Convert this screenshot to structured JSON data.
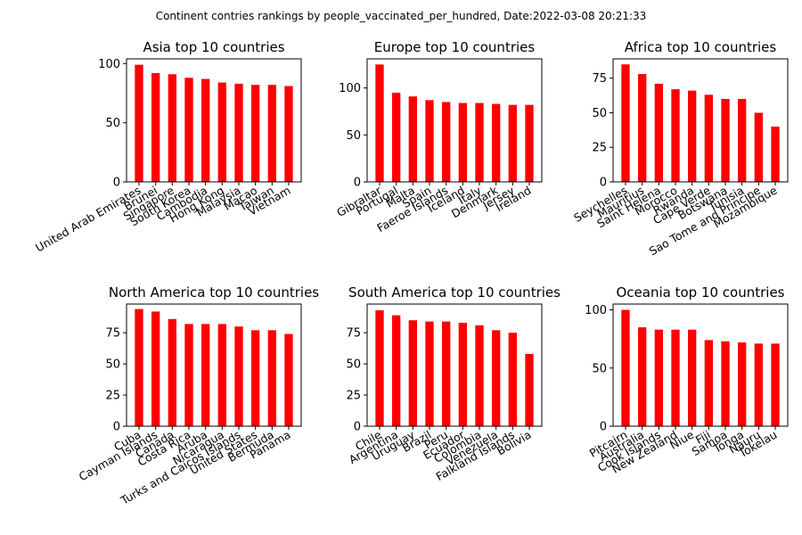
{
  "suptitle": "Continent contries rankings by people_vaccinated_per_hundred, Date:2022-03-08 20:21:33",
  "colors": {
    "bar": "#ff0000",
    "axis": "#000000",
    "background": "#ffffff"
  },
  "chart_data": [
    {
      "type": "bar",
      "title": "Asia top 10 countries",
      "categories": [
        "United Arab Emirates",
        "Brunei",
        "Singapore",
        "South Korea",
        "Cambodia",
        "Hong Kong",
        "Malaysia",
        "Macao",
        "Taiwan",
        "Vietnam"
      ],
      "values": [
        99,
        92,
        91,
        88,
        87,
        84,
        83,
        82,
        82,
        81
      ],
      "ylim": [
        0,
        104
      ],
      "yticks": [
        0,
        50,
        100
      ],
      "grid": false
    },
    {
      "type": "bar",
      "title": "Europe top 10 countries",
      "categories": [
        "Gibraltar",
        "Portugal",
        "Malta",
        "Spain",
        "Faeroe Islands",
        "Iceland",
        "Italy",
        "Denmark",
        "Jersey",
        "Ireland"
      ],
      "values": [
        125,
        95,
        91,
        87,
        85,
        84,
        84,
        83,
        82,
        82
      ],
      "ylim": [
        0,
        131
      ],
      "yticks": [
        0,
        50,
        100
      ],
      "grid": false
    },
    {
      "type": "bar",
      "title": "Africa top 10 countries",
      "categories": [
        "Seychelles",
        "Mauritius",
        "Saint Helena",
        "Morocco",
        "Rwanda",
        "Cape Verde",
        "Botswana",
        "Tunisia",
        "Sao Tome and Principe",
        "Mozambique"
      ],
      "values": [
        85,
        78,
        71,
        67,
        66,
        63,
        60,
        60,
        50,
        40
      ],
      "ylim": [
        0,
        89
      ],
      "yticks": [
        0,
        25,
        50,
        75
      ],
      "grid": false
    },
    {
      "type": "bar",
      "title": "North America top 10 countries",
      "categories": [
        "Cuba",
        "Cayman Islands",
        "Canada",
        "Costa Rica",
        "Aruba",
        "Nicaragua",
        "Turks and Caicos Islands",
        "United States",
        "Bermuda",
        "Panama"
      ],
      "values": [
        94,
        92,
        86,
        82,
        82,
        82,
        80,
        77,
        77,
        74
      ],
      "ylim": [
        0,
        98
      ],
      "yticks": [
        0,
        25,
        50,
        75
      ],
      "grid": false
    },
    {
      "type": "bar",
      "title": "South America top 10 countries",
      "categories": [
        "Chile",
        "Argentina",
        "Uruguay",
        "Brazil",
        "Peru",
        "Ecuador",
        "Colombia",
        "Venezuela",
        "Falkland Islands",
        "Bolivia"
      ],
      "values": [
        93,
        89,
        85,
        84,
        84,
        83,
        81,
        77,
        75,
        58
      ],
      "ylim": [
        0,
        98
      ],
      "yticks": [
        0,
        25,
        50,
        75
      ],
      "grid": false
    },
    {
      "type": "bar",
      "title": "Oceania top 10 countries",
      "categories": [
        "Pitcairn",
        "Australia",
        "Cook Islands",
        "New Zealand",
        "Niue",
        "Fiji",
        "Samoa",
        "Tonga",
        "Nauru",
        "Tokelau"
      ],
      "values": [
        100,
        85,
        83,
        83,
        83,
        74,
        73,
        72,
        71,
        71
      ],
      "ylim": [
        0,
        105
      ],
      "yticks": [
        0,
        50,
        100
      ],
      "grid": false
    }
  ]
}
